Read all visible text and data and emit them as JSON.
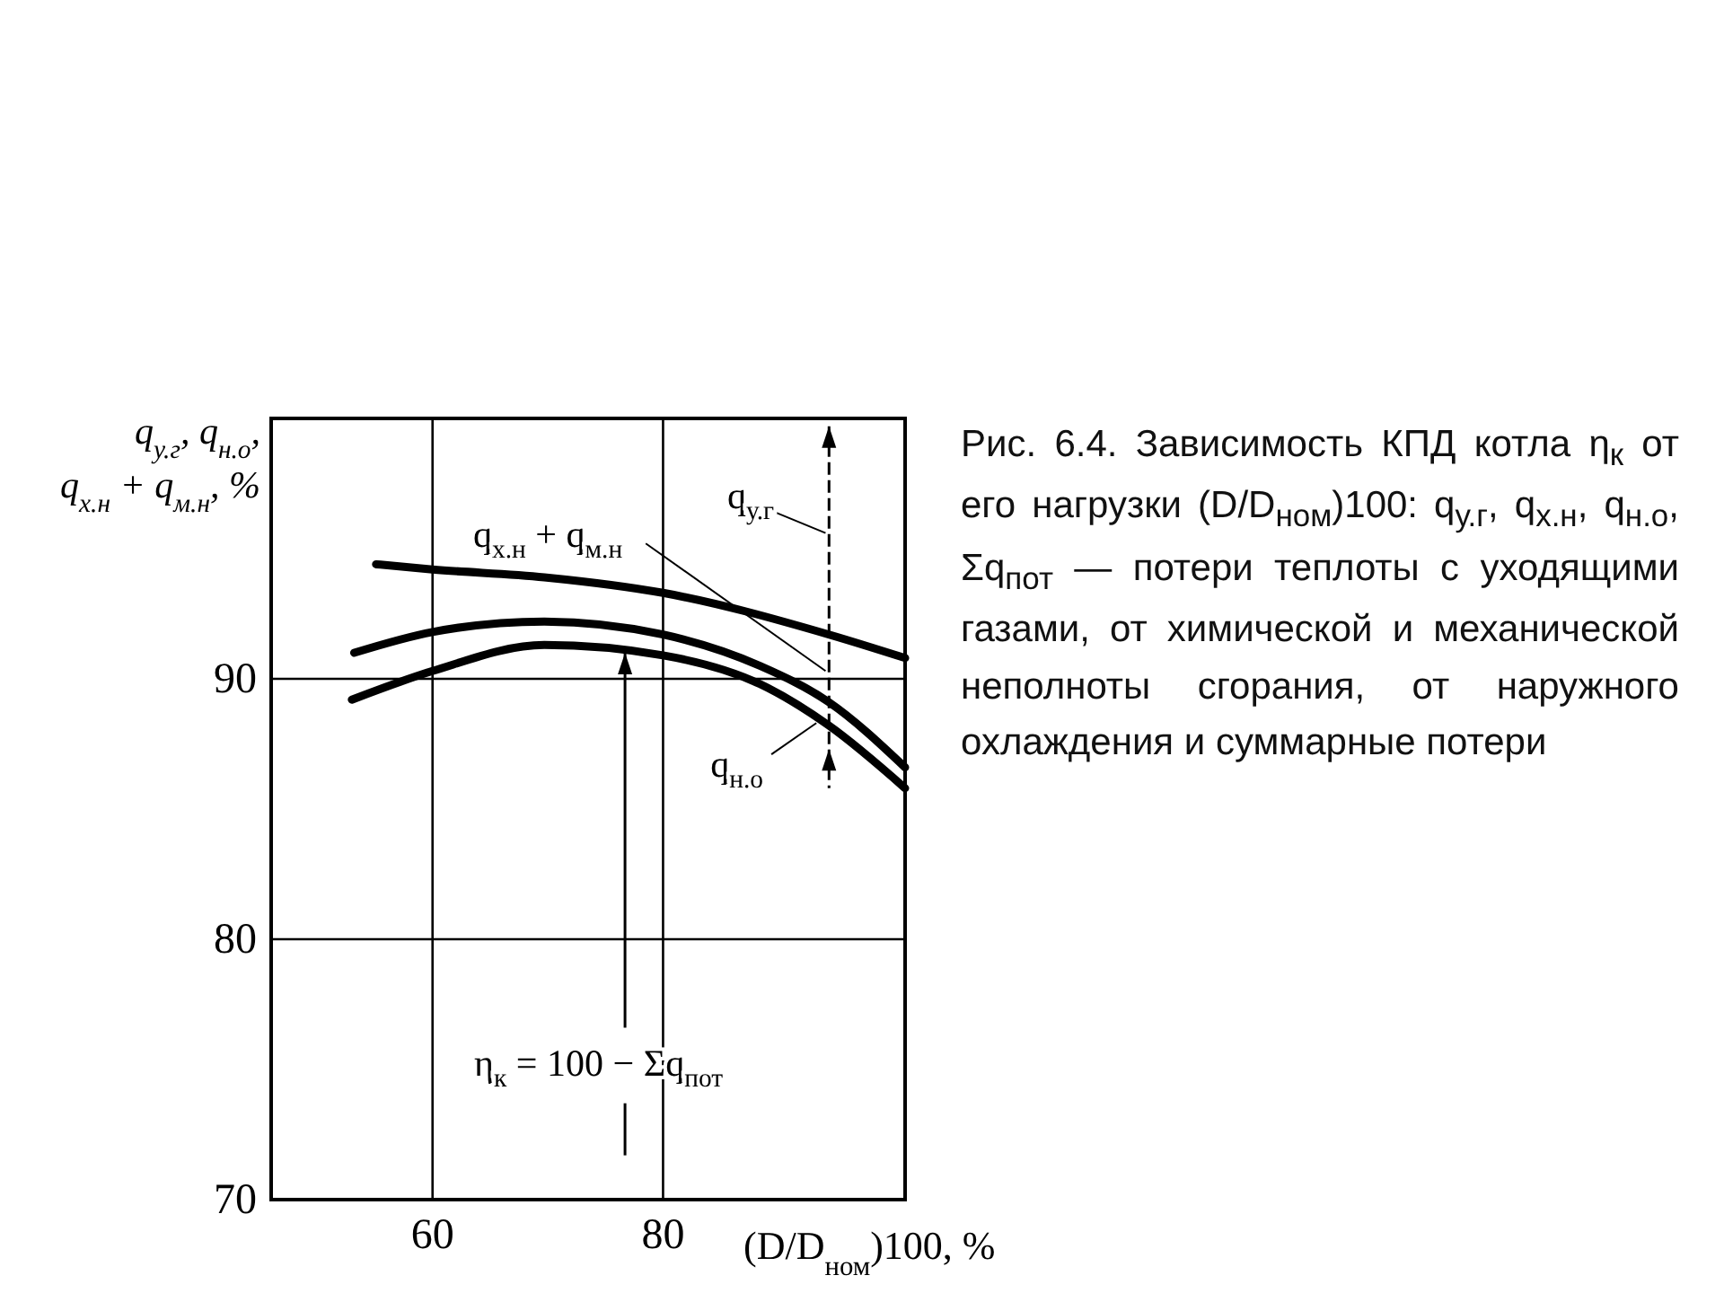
{
  "chart_data": {
    "type": "line",
    "xlabel": "(D/D$_{ном}$)100, %",
    "ylabel": "q$_{у.г}$, q$_{н.о}$, q$_{х.н}$ + q$_{м.н}$, %",
    "x": [
      55.1,
      60,
      69.7,
      80,
      94.4,
      101
    ],
    "series": [
      {
        "color": "#000000",
        "values": [
          94.4,
          94.2,
          93.9,
          93.3,
          91.7,
          90.8
        ]
      },
      {
        "color": "#000000",
        "x": [
          53.2,
          60,
          69.7,
          80,
          88.4,
          94.4,
          101
        ],
        "values": [
          91.0,
          91.8,
          92.2,
          91.7,
          90.5,
          89.1,
          86.6
        ]
      },
      {
        "color": "#000000",
        "x": [
          53.0,
          60,
          69.7,
          80,
          88.4,
          94.4,
          101
        ],
        "values": [
          89.2,
          90.3,
          91.3,
          90.9,
          89.8,
          88.2,
          85.8
        ]
      }
    ],
    "xlim": [
      46,
      101
    ],
    "ylim": [
      70,
      100
    ],
    "xticks": [
      60,
      80
    ],
    "yticks": [
      70,
      80,
      90
    ],
    "grid": true,
    "marker": "none",
    "line_style": "solid",
    "annotations": [
      "q$_{х.н}$ + q$_{м.н}$",
      "q$_{у.г}$",
      "q$_{н.о}$",
      "η$_{к}$ = 100 − Σq$_{пот}$",
      "Рис. 6.4. Зависимость КПД котла η$_{к}$ от его нагрузки (D/D$_{ном}$)100: q$_{у.г}$, q$_{х.н}$, q$_{н.о}$, Σq$_{пот}$ — потери теплоты с уходящими газами, от химической и механической неполноты сгорания, от наружного охлаждения и суммарные потери"
    ]
  }
}
